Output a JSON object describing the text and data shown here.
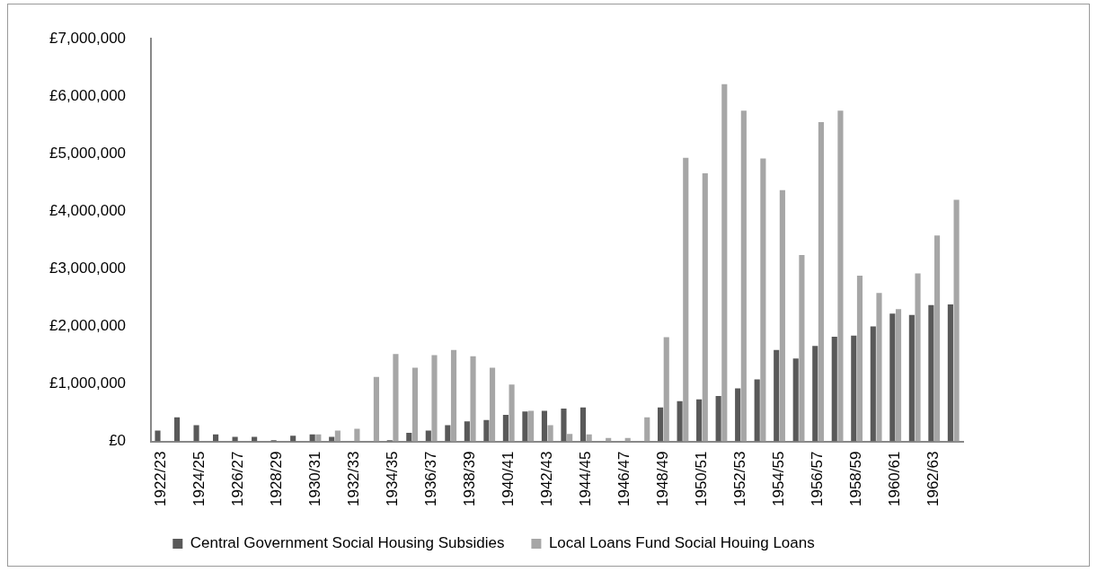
{
  "chart_data": {
    "type": "bar",
    "categories": [
      "1922/23",
      null,
      "1924/25",
      null,
      "1926/27",
      null,
      "1928/29",
      null,
      "1930/31",
      null,
      "1932/33",
      null,
      "1934/35",
      null,
      "1936/37",
      null,
      "1938/39",
      null,
      "1940/41",
      null,
      "1942/43",
      null,
      "1944/45",
      null,
      "1946/47",
      null,
      "1948/49",
      null,
      "1950/51",
      null,
      "1952/53",
      null,
      "1954/55",
      null,
      "1956/57",
      null,
      "1958/59",
      null,
      "1960/61",
      null,
      "1962/63",
      null
    ],
    "series": [
      {
        "name": "Central Government Social Housing Subsidies",
        "color": "#595959",
        "values": [
          190000,
          420000,
          280000,
          120000,
          80000,
          80000,
          20000,
          100000,
          120000,
          80000,
          0,
          null,
          20000,
          150000,
          190000,
          280000,
          350000,
          370000,
          460000,
          520000,
          530000,
          570000,
          590000,
          0,
          0,
          0,
          590000,
          700000,
          730000,
          790000,
          920000,
          1080000,
          1590000,
          1440000,
          1660000,
          1820000,
          1840000,
          2000000,
          2220000,
          2200000,
          2370000,
          2380000
        ]
      },
      {
        "name": "Local Loans Fund Social Houing Loans",
        "color": "#a6a6a6",
        "values": [
          null,
          0,
          0,
          0,
          0,
          0,
          0,
          0,
          120000,
          190000,
          220000,
          1120000,
          1520000,
          1280000,
          1500000,
          1590000,
          1480000,
          1280000,
          990000,
          530000,
          280000,
          130000,
          120000,
          60000,
          60000,
          420000,
          1810000,
          4930000,
          4660000,
          6210000,
          5750000,
          4920000,
          4370000,
          3240000,
          5550000,
          5750000,
          2880000,
          2580000,
          2300000,
          2920000,
          3580000,
          4200000
        ]
      }
    ],
    "ylim": [
      0,
      7000000
    ],
    "yticks": [
      {
        "value": 0,
        "label": "£0"
      },
      {
        "value": 1000000,
        "label": "£1,000,000"
      },
      {
        "value": 2000000,
        "label": "£2,000,000"
      },
      {
        "value": 3000000,
        "label": "£3,000,000"
      },
      {
        "value": 4000000,
        "label": "£4,000,000"
      },
      {
        "value": 5000000,
        "label": "£5,000,000"
      },
      {
        "value": 6000000,
        "label": "£6,000,000"
      },
      {
        "value": 7000000,
        "label": "£7,000,000"
      }
    ],
    "grid": false,
    "legend": "bottom"
  }
}
